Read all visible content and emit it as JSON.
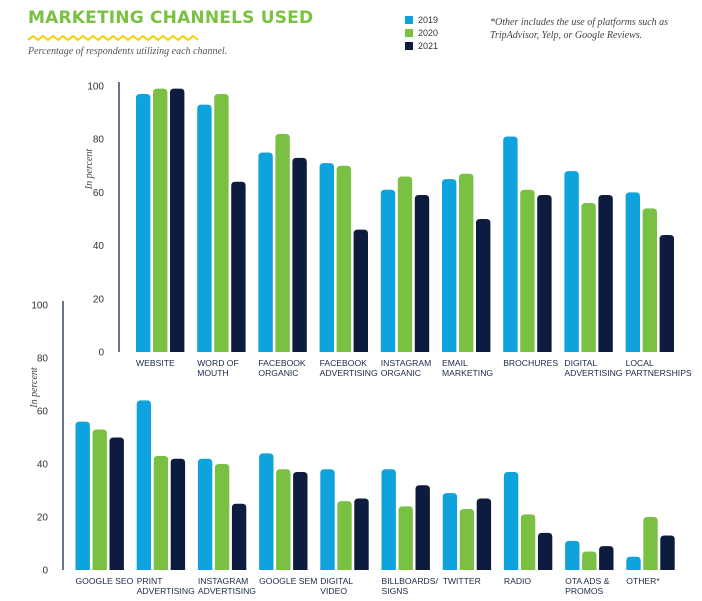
{
  "title": "MARKETING CHANNELS USED",
  "subtitle": "Percentage of respondents utilizing each channel.",
  "footnote": "*Other includes the use of platforms such as TripAdvisor, Yelp, or Google Reviews.",
  "colors": {
    "title": "#7ac143",
    "zigzag": "#f4d200"
  },
  "chart_data": [
    {
      "type": "bar",
      "ylabel": "In percent",
      "ylim": [
        0,
        100
      ],
      "yticks": [
        0,
        20,
        40,
        60,
        80,
        100
      ],
      "legend_position": "top-right",
      "categories": [
        [
          "WEBSITE"
        ],
        [
          "WORD OF",
          "MOUTH"
        ],
        [
          "FACEBOOK",
          "ORGANIC"
        ],
        [
          "FACEBOOK",
          "ADVERTISING"
        ],
        [
          "INSTAGRAM",
          "ORGANIC"
        ],
        [
          "EMAIL",
          "MARKETING"
        ],
        [
          "BROCHURES"
        ],
        [
          "DIGITAL",
          "ADVERTISING"
        ],
        [
          "LOCAL",
          "PARTNERSHIPS"
        ]
      ],
      "series": [
        {
          "name": "2019",
          "color": "#0ea3dc",
          "values": [
            97,
            93,
            75,
            71,
            61,
            65,
            81,
            68,
            60
          ]
        },
        {
          "name": "2020",
          "color": "#7ac143",
          "values": [
            99,
            97,
            82,
            70,
            66,
            67,
            61,
            56,
            54
          ]
        },
        {
          "name": "2021",
          "color": "#0d1b3e",
          "values": [
            99,
            64,
            73,
            46,
            59,
            50,
            59,
            59,
            44
          ]
        }
      ]
    },
    {
      "type": "bar",
      "ylabel": "In percent",
      "ylim": [
        0,
        100
      ],
      "yticks": [
        0,
        20,
        40,
        60,
        80,
        100
      ],
      "categories": [
        [
          "GOOGLE SEO"
        ],
        [
          "PRINT",
          "ADVERTISING"
        ],
        [
          "INSTAGRAM",
          "ADVERTISING"
        ],
        [
          "GOOGLE SEM"
        ],
        [
          "DIGITAL",
          "VIDEO"
        ],
        [
          "BILLBOARDS/",
          "SIGNS"
        ],
        [
          "TWITTER"
        ],
        [
          "RADIO"
        ],
        [
          "OTA ADS &",
          "PROMOS"
        ],
        [
          "OTHER*"
        ]
      ],
      "series": [
        {
          "name": "2019",
          "color": "#0ea3dc",
          "values": [
            56,
            64,
            42,
            44,
            38,
            38,
            29,
            37,
            11,
            5
          ]
        },
        {
          "name": "2020",
          "color": "#7ac143",
          "values": [
            53,
            43,
            40,
            38,
            26,
            24,
            23,
            21,
            7,
            20
          ]
        },
        {
          "name": "2021",
          "color": "#0d1b3e",
          "values": [
            50,
            42,
            25,
            37,
            27,
            32,
            27,
            14,
            9,
            13
          ]
        }
      ]
    }
  ]
}
